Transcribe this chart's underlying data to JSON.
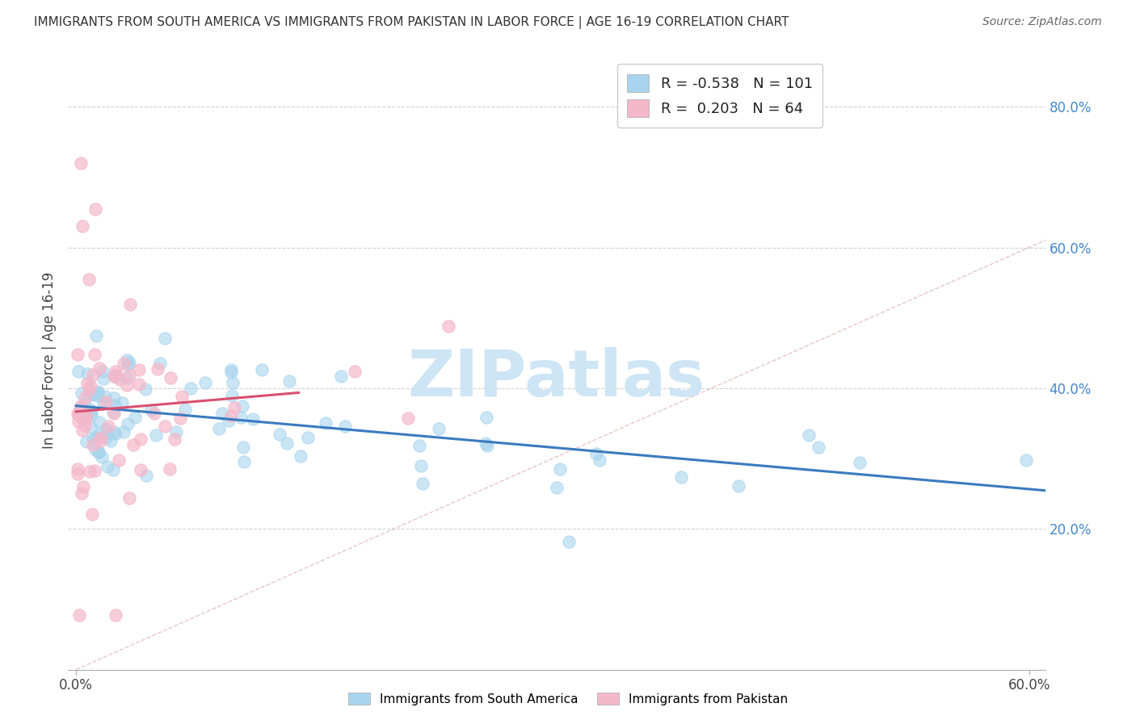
{
  "title": "IMMIGRANTS FROM SOUTH AMERICA VS IMMIGRANTS FROM PAKISTAN IN LABOR FORCE | AGE 16-19 CORRELATION CHART",
  "source": "Source: ZipAtlas.com",
  "ylabel": "In Labor Force | Age 16-19",
  "xlabel_sa": "Immigrants from South America",
  "xlabel_pk": "Immigrants from Pakistan",
  "xlim": [
    -0.005,
    0.61
  ],
  "ylim": [
    0.0,
    0.88
  ],
  "ytick_positions": [
    0.2,
    0.4,
    0.6,
    0.8
  ],
  "ytick_labels": [
    "20.0%",
    "40.0%",
    "60.0%",
    "80.0%"
  ],
  "color_sa": "#a8d4ed",
  "color_pk": "#f4b8cb",
  "line_color_sa": "#3a7bbf",
  "line_color_pk": "#d94f6e",
  "diag_color": "#d4a0a8",
  "R_sa": -0.538,
  "N_sa": 101,
  "R_pk": 0.203,
  "N_pk": 64,
  "watermark": "ZIPatlas",
  "watermark_color": "#cde5f5",
  "background_color": "#ffffff",
  "grid_color": "#cccccc",
  "legend_R_color": "#cc3355",
  "legend_N_color": "#4488cc"
}
